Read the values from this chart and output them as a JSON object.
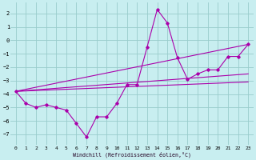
{
  "xlabel": "Windchill (Refroidissement éolien,°C)",
  "bg_color": "#c8eef0",
  "line_color": "#aa00aa",
  "grid_color": "#99cccc",
  "xlim": [
    -0.5,
    23.5
  ],
  "ylim": [
    -7.8,
    2.8
  ],
  "xticks": [
    0,
    1,
    2,
    3,
    4,
    5,
    6,
    7,
    8,
    9,
    10,
    11,
    12,
    13,
    14,
    15,
    16,
    17,
    18,
    19,
    20,
    21,
    22,
    23
  ],
  "yticks": [
    -7,
    -6,
    -5,
    -4,
    -3,
    -2,
    -1,
    0,
    1,
    2
  ],
  "zigzag": {
    "x": [
      0,
      1,
      2,
      3,
      4,
      5,
      6,
      7,
      8,
      9,
      10,
      11,
      12,
      13,
      14,
      15,
      16,
      17,
      18,
      19,
      20,
      21,
      22,
      23
    ],
    "y": [
      -3.8,
      -4.7,
      -5.0,
      -4.8,
      -5.0,
      -5.2,
      -6.2,
      -7.2,
      -5.7,
      -5.7,
      -4.7,
      -3.3,
      -3.3,
      -0.5,
      2.3,
      1.3,
      -1.3,
      -2.9,
      -2.5,
      -2.2,
      -2.2,
      -1.2,
      -1.2,
      -0.3
    ]
  },
  "trend_lines": [
    {
      "x": [
        0,
        23
      ],
      "y": [
        -3.8,
        -0.3
      ]
    },
    {
      "x": [
        0,
        23
      ],
      "y": [
        -3.8,
        -2.5
      ]
    },
    {
      "x": [
        0,
        23
      ],
      "y": [
        -3.8,
        -3.1
      ]
    }
  ]
}
